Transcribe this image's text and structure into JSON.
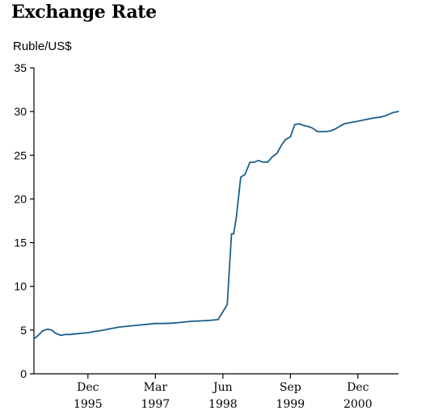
{
  "chart_data": {
    "type": "line",
    "title": "Exchange Rate",
    "ylabel": "Ruble/US$",
    "xlabel": "",
    "ylim": [
      0,
      35
    ],
    "xlim": [
      1994.92,
      2001.67
    ],
    "yticks": [
      0,
      5,
      10,
      15,
      20,
      25,
      30,
      35
    ],
    "xticks": [
      {
        "x": 1995.92,
        "label": "Dec",
        "sublabel": "1995"
      },
      {
        "x": 1997.17,
        "label": "Mar",
        "sublabel": "1997"
      },
      {
        "x": 1998.42,
        "label": "Jun",
        "sublabel": "1998"
      },
      {
        "x": 1999.67,
        "label": "Sep",
        "sublabel": "1999"
      },
      {
        "x": 2000.92,
        "label": "Dec",
        "sublabel": "2000"
      }
    ],
    "grid": false,
    "line_color": "#1b5e8c",
    "series": [
      {
        "x": [
          1994.92,
          1995.0,
          1995.08,
          1995.17,
          1995.25,
          1995.33,
          1995.42,
          1995.5,
          1995.58,
          1995.67,
          1995.75,
          1995.83,
          1995.92,
          1996.0,
          1996.17,
          1996.33,
          1996.5,
          1996.67,
          1996.83,
          1997.0,
          1997.17,
          1997.33,
          1997.5,
          1997.67,
          1997.83,
          1998.0,
          1998.17,
          1998.33,
          1998.5,
          1998.58,
          1998.62,
          1998.67,
          1998.75,
          1998.83,
          1998.92,
          1999.0,
          1999.08,
          1999.17,
          1999.25,
          1999.33,
          1999.42,
          1999.5,
          1999.58,
          1999.67,
          1999.75,
          1999.83,
          1999.92,
          2000.0,
          2000.08,
          2000.17,
          2000.25,
          2000.33,
          2000.42,
          2000.5,
          2000.58,
          2000.67,
          2000.75,
          2000.83,
          2000.92,
          2001.0,
          2001.08,
          2001.17,
          2001.25,
          2001.33,
          2001.42,
          2001.5,
          2001.58,
          2001.67
        ],
        "values": [
          4.0,
          4.4,
          4.9,
          5.1,
          5.0,
          4.6,
          4.4,
          4.5,
          4.5,
          4.55,
          4.6,
          4.65,
          4.7,
          4.8,
          4.95,
          5.15,
          5.35,
          5.45,
          5.55,
          5.65,
          5.75,
          5.75,
          5.8,
          5.9,
          6.0,
          6.05,
          6.1,
          6.2,
          7.9,
          16.0,
          16.0,
          18.0,
          22.5,
          22.8,
          24.2,
          24.2,
          24.4,
          24.2,
          24.2,
          24.8,
          25.2,
          26.1,
          26.8,
          27.1,
          28.5,
          28.6,
          28.4,
          28.3,
          28.1,
          27.7,
          27.7,
          27.7,
          27.8,
          28.0,
          28.3,
          28.6,
          28.7,
          28.8,
          28.9,
          29.0,
          29.1,
          29.2,
          29.3,
          29.35,
          29.5,
          29.7,
          29.9,
          30.0
        ]
      }
    ]
  }
}
